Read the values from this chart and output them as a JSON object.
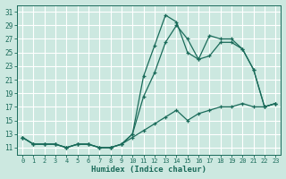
{
  "title": "",
  "xlabel": "Humidex (Indice chaleur)",
  "ylabel": "",
  "bg_color": "#cce8e0",
  "grid_color": "#b0d4cc",
  "line_color": "#1a6b5a",
  "xlim": [
    -0.5,
    23.5
  ],
  "ylim": [
    10.0,
    32.0
  ],
  "xticks": [
    0,
    1,
    2,
    3,
    4,
    5,
    6,
    7,
    8,
    9,
    10,
    11,
    12,
    13,
    14,
    15,
    16,
    17,
    18,
    19,
    20,
    21,
    22,
    23
  ],
  "yticks": [
    11,
    13,
    15,
    17,
    19,
    21,
    23,
    25,
    27,
    29,
    31
  ],
  "line1_x": [
    0,
    1,
    2,
    3,
    4,
    5,
    6,
    7,
    8,
    9,
    10,
    11,
    12,
    13,
    14,
    15,
    16,
    17,
    18,
    19,
    20,
    21,
    22,
    23
  ],
  "line1_y": [
    12.5,
    11.5,
    11.5,
    11.5,
    11.0,
    11.5,
    11.5,
    11.0,
    11.0,
    11.5,
    13.0,
    21.5,
    26.0,
    30.5,
    29.5,
    25.0,
    24.0,
    27.5,
    27.0,
    27.0,
    25.5,
    22.5,
    17.0,
    17.5
  ],
  "line2_x": [
    0,
    1,
    2,
    3,
    4,
    5,
    6,
    7,
    8,
    9,
    10,
    11,
    12,
    13,
    14,
    15,
    16,
    17,
    18,
    19,
    20,
    21,
    22,
    23
  ],
  "line2_y": [
    12.5,
    11.5,
    11.5,
    11.5,
    11.0,
    11.5,
    11.5,
    11.0,
    11.0,
    11.5,
    13.0,
    18.5,
    22.0,
    26.5,
    29.0,
    27.0,
    24.0,
    24.5,
    26.5,
    26.5,
    25.5,
    22.5,
    17.0,
    17.5
  ],
  "line3_x": [
    0,
    1,
    2,
    3,
    4,
    5,
    6,
    7,
    8,
    9,
    10,
    11,
    12,
    13,
    14,
    15,
    16,
    17,
    18,
    19,
    20,
    21,
    22,
    23
  ],
  "line3_y": [
    12.5,
    11.5,
    11.5,
    11.5,
    11.0,
    11.5,
    11.5,
    11.0,
    11.0,
    11.5,
    12.5,
    13.5,
    14.5,
    15.5,
    16.5,
    15.0,
    16.0,
    16.5,
    17.0,
    17.0,
    17.5,
    17.0,
    17.0,
    17.5
  ]
}
